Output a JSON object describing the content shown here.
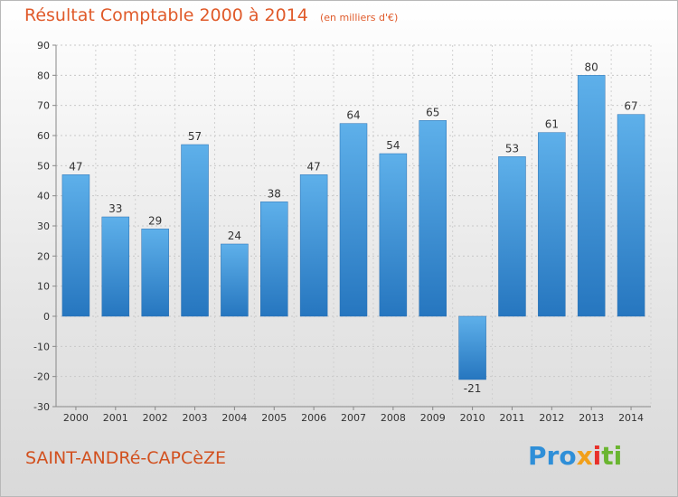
{
  "header": {
    "title": "Résultat Comptable 2000 à 2014",
    "unit_note": "(en milliers d'€)"
  },
  "footer": {
    "commune": "SAINT-ANDRé-CAPCèZE",
    "logo_parts": [
      "Pro",
      "x",
      "i",
      "ti"
    ]
  },
  "colors": {
    "bar_light": "#5aace6",
    "bar_dark": "#2a7ac2",
    "title": "#e05a2a"
  },
  "chart_data": {
    "type": "bar",
    "title": "Résultat Comptable 2000 à 2014",
    "subtitle": "(en milliers d'€)",
    "categories": [
      "2000",
      "2001",
      "2002",
      "2003",
      "2004",
      "2005",
      "2006",
      "2007",
      "2008",
      "2009",
      "2010",
      "2011",
      "2012",
      "2013",
      "2014"
    ],
    "values": [
      47,
      33,
      29,
      57,
      24,
      38,
      47,
      64,
      54,
      65,
      -21,
      53,
      61,
      80,
      67
    ],
    "ylim": [
      -30,
      90
    ],
    "yticks": [
      -30,
      -20,
      -10,
      0,
      10,
      20,
      30,
      40,
      50,
      60,
      70,
      80,
      90
    ],
    "grid": true,
    "xlabel": "",
    "ylabel": ""
  }
}
